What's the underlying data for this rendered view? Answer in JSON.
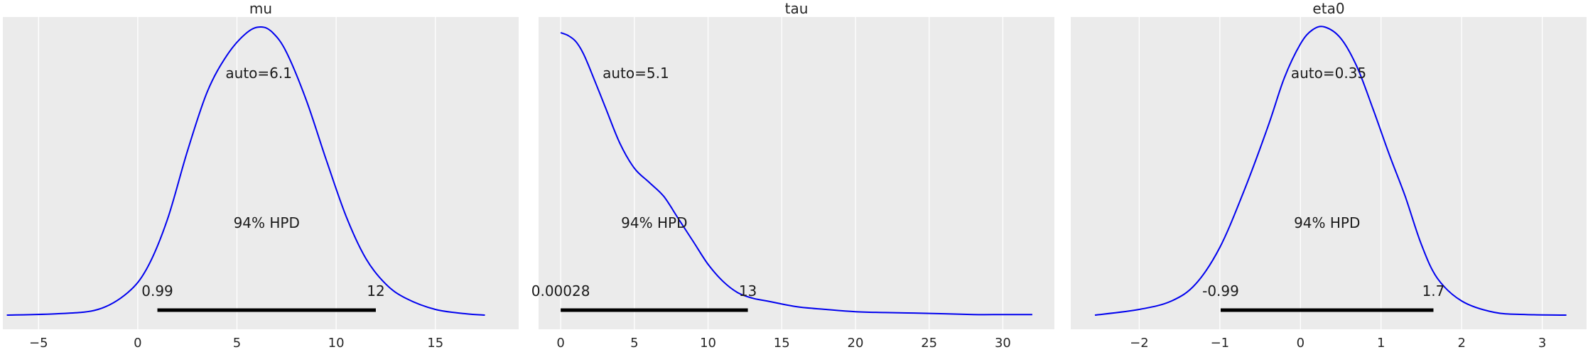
{
  "chart_data": [
    {
      "type": "line",
      "title": "mu",
      "xlim": [
        -6.8,
        19.2
      ],
      "ylim": [
        0,
        1.03
      ],
      "x_ticks": [
        -5,
        0,
        5,
        10,
        15
      ],
      "tick_labels": [
        "−5",
        "0",
        "5",
        "10",
        "15"
      ],
      "grid": true,
      "curve_color": "#0000ee",
      "density": {
        "x": [
          -6.6,
          -4,
          -2,
          -0.5,
          0.5,
          1.5,
          2.5,
          3.5,
          4.5,
          5.5,
          6.2,
          6.8,
          7.5,
          8.5,
          9.5,
          10.5,
          11.5,
          12.5,
          13.5,
          15,
          16.5,
          17.5
        ],
        "y": [
          0.0,
          0.005,
          0.02,
          0.08,
          0.17,
          0.34,
          0.58,
          0.79,
          0.92,
          1.0,
          1.02,
          1.0,
          0.93,
          0.76,
          0.55,
          0.35,
          0.2,
          0.11,
          0.06,
          0.02,
          0.005,
          0.0
        ]
      },
      "point_estimate": {
        "label": "auto=6.1",
        "value": 6.1
      },
      "hpd": {
        "label": "94% HPD",
        "low": 0.99,
        "high": 12,
        "low_label": "0.99",
        "high_label": "12"
      }
    },
    {
      "type": "line",
      "title": "tau",
      "xlim": [
        -1.5,
        33.5
      ],
      "ylim": [
        0,
        1.03
      ],
      "x_ticks": [
        0,
        5,
        10,
        15,
        20,
        25,
        30
      ],
      "tick_labels": [
        "0",
        "5",
        "10",
        "15",
        "20",
        "25",
        "30"
      ],
      "grid": true,
      "curve_color": "#0000ee",
      "density": {
        "x": [
          0,
          0.5,
          1,
          1.5,
          2,
          3,
          4,
          5,
          6,
          7,
          8,
          9,
          10,
          11,
          12,
          13,
          14,
          16,
          18,
          20,
          22,
          25,
          28,
          30,
          32
        ],
        "y": [
          1.0,
          0.99,
          0.97,
          0.93,
          0.87,
          0.74,
          0.61,
          0.52,
          0.47,
          0.42,
          0.34,
          0.26,
          0.18,
          0.12,
          0.08,
          0.06,
          0.05,
          0.03,
          0.02,
          0.012,
          0.009,
          0.006,
          0.002,
          0.002,
          0.002
        ]
      },
      "point_estimate": {
        "label": "auto=5.1",
        "value": 5.1
      },
      "hpd": {
        "label": "94% HPD",
        "low": 0.00028,
        "high": 12.7,
        "low_label": "0.00028",
        "high_label": "13"
      }
    },
    {
      "type": "line",
      "title": "eta0",
      "xlim": [
        -2.85,
        3.55
      ],
      "ylim": [
        0,
        1.03
      ],
      "x_ticks": [
        -2,
        -1,
        0,
        1,
        2,
        3
      ],
      "tick_labels": [
        "−2",
        "−1",
        "0",
        "1",
        "2",
        "3"
      ],
      "grid": true,
      "curve_color": "#0000ee",
      "density": {
        "x": [
          -2.55,
          -2.0,
          -1.6,
          -1.3,
          -1.0,
          -0.7,
          -0.4,
          -0.2,
          0.0,
          0.15,
          0.3,
          0.5,
          0.7,
          0.9,
          1.1,
          1.3,
          1.5,
          1.7,
          2.0,
          2.4,
          2.8,
          3.3
        ],
        "y": [
          0.0,
          0.02,
          0.05,
          0.11,
          0.24,
          0.44,
          0.67,
          0.84,
          0.96,
          1.01,
          1.02,
          0.98,
          0.88,
          0.73,
          0.57,
          0.42,
          0.25,
          0.13,
          0.05,
          0.01,
          0.002,
          0.0
        ]
      },
      "point_estimate": {
        "label": "auto=0.35",
        "value": 0.35
      },
      "hpd": {
        "label": "94% HPD",
        "low": -0.99,
        "high": 1.65,
        "low_label": "-0.99",
        "high_label": "1.7"
      }
    }
  ],
  "colors": {
    "panel_background": "#ebebeb",
    "grid": "#ffffff",
    "curve": "#0000ee",
    "hpd_bar": "#000000",
    "text": "#262626"
  }
}
